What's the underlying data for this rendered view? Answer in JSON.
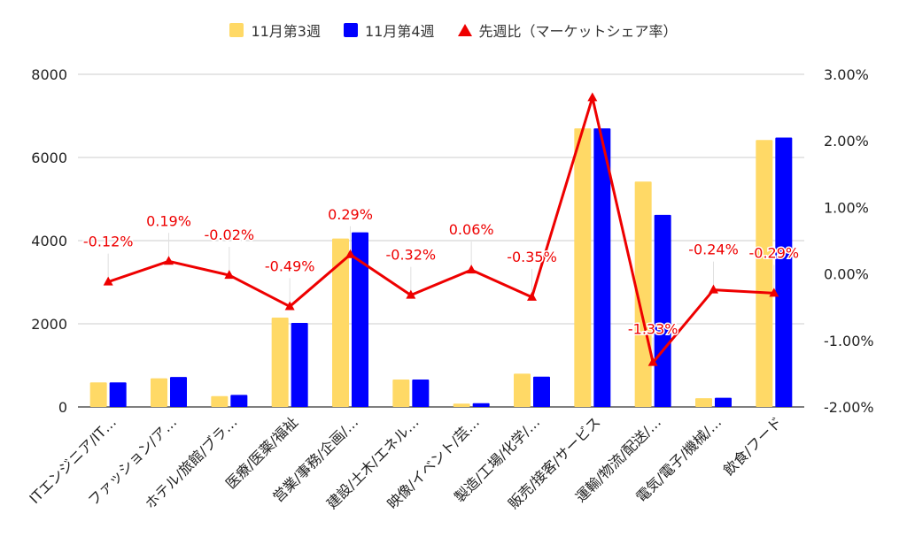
{
  "chart_data": {
    "type": "bar",
    "categories": [
      "ITエンジニア/IT…",
      "ファッション/ア…",
      "ホテル/旅館/ブラ…",
      "医療/医薬/福祉",
      "営業/事務/企画/…",
      "建設/土木/エネル…",
      "映像/イベント/芸…",
      "製造/工場/化学/…",
      "販売/接客/サービス",
      "運輸/物流/配送/…",
      "電気/電子/機械/…",
      "飲食/フード"
    ],
    "series": [
      {
        "name": "11月第3週",
        "color": "#ffd966",
        "axis": "left",
        "values": [
          590,
          690,
          260,
          2150,
          4050,
          660,
          80,
          800,
          6700,
          5420,
          210,
          6420
        ]
      },
      {
        "name": "11月第4週",
        "color": "#0000ff",
        "axis": "left",
        "values": [
          590,
          720,
          290,
          2020,
          4200,
          660,
          90,
          730,
          6700,
          4620,
          220,
          6480
        ]
      },
      {
        "name": "先週比（マーケットシェア率）",
        "color": "#ee0000",
        "axis": "right",
        "type": "line",
        "values": [
          -0.12,
          0.19,
          -0.02,
          -0.49,
          0.29,
          -0.32,
          0.06,
          -0.35,
          2.65,
          -1.33,
          -0.24,
          -0.29
        ],
        "labels": [
          "-0.12%",
          "0.19%",
          "-0.02%",
          "-0.49%",
          "0.29%",
          "-0.32%",
          "0.06%",
          "-0.35%",
          "",
          "-1.33%",
          "-0.24%",
          "-0.29%"
        ]
      }
    ],
    "y_left": {
      "ylim": [
        0,
        8000
      ],
      "ticks": [
        0,
        2000,
        4000,
        6000,
        8000
      ],
      "tick_labels": [
        "0",
        "2000",
        "4000",
        "6000",
        "8000"
      ]
    },
    "y_right": {
      "ylim": [
        -2,
        3
      ],
      "ticks": [
        -2,
        -1,
        0,
        1,
        2,
        3
      ],
      "tick_labels": [
        "-2.00%",
        "-1.00%",
        "0.00%",
        "1.00%",
        "2.00%",
        "3.00%"
      ]
    },
    "grid": true,
    "legend_position": "top"
  }
}
